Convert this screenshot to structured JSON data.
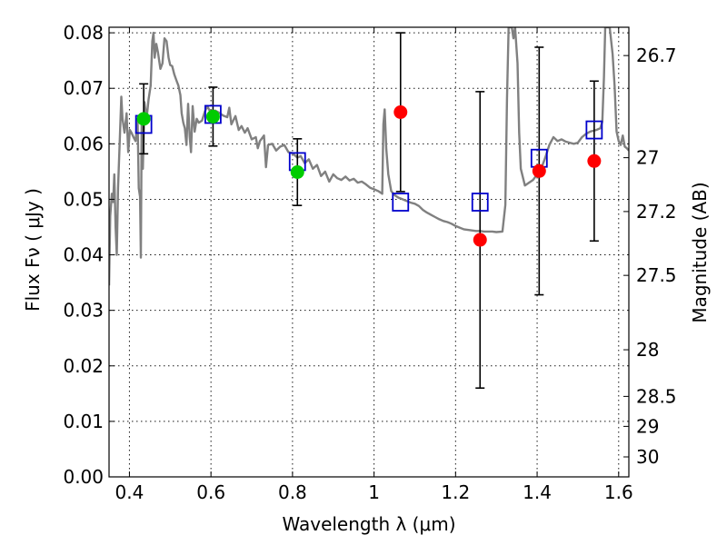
{
  "chart_data": {
    "type": "scatter",
    "xlabel": "Wavelength  λ (μm)",
    "ylabel": "Flux  Fν  ( μJy )",
    "ylabel_right": "Magnitude (AB)",
    "xlim": [
      0.35,
      1.625
    ],
    "ylim": [
      0.0,
      0.081
    ],
    "grid": true,
    "x_ticks": [
      0.4,
      0.6,
      0.8,
      1.0,
      1.2,
      1.4,
      1.6
    ],
    "x_tick_labels": [
      "0.4",
      "0.6",
      "0.8",
      "1",
      "1.2",
      "1.4",
      "1.6"
    ],
    "y_ticks": [
      0.0,
      0.01,
      0.02,
      0.03,
      0.04,
      0.05,
      0.06,
      0.07,
      0.08
    ],
    "y_tick_labels": [
      "0.00",
      "0.01",
      "0.02",
      "0.03",
      "0.04",
      "0.05",
      "0.06",
      "0.07",
      "0.08"
    ],
    "mag_ticks": [
      {
        "label": "26.7",
        "flux": 0.0759
      },
      {
        "label": "27",
        "flux": 0.0575
      },
      {
        "label": "27.2",
        "flux": 0.0478
      },
      {
        "label": "27.5",
        "flux": 0.0363
      },
      {
        "label": "28",
        "flux": 0.0229
      },
      {
        "label": "28.5",
        "flux": 0.0145
      },
      {
        "label": "29",
        "flux": 0.0091
      },
      {
        "label": "30",
        "flux": 0.0036
      }
    ],
    "sed_model": {
      "color": "#808080",
      "points": [
        [
          0.35,
          0.0345
        ],
        [
          0.353,
          0.047
        ],
        [
          0.357,
          0.051
        ],
        [
          0.36,
          0.0495
        ],
        [
          0.363,
          0.0545
        ],
        [
          0.366,
          0.045
        ],
        [
          0.369,
          0.04
        ],
        [
          0.372,
          0.052
        ],
        [
          0.376,
          0.0602
        ],
        [
          0.38,
          0.0685
        ],
        [
          0.383,
          0.0645
        ],
        [
          0.388,
          0.062
        ],
        [
          0.393,
          0.0655
        ],
        [
          0.397,
          0.0585
        ],
        [
          0.401,
          0.0625
        ],
        [
          0.405,
          0.062
        ],
        [
          0.41,
          0.0612
        ],
        [
          0.415,
          0.0605
        ],
        [
          0.42,
          0.0645
        ],
        [
          0.423,
          0.052
        ],
        [
          0.426,
          0.0505
        ],
        [
          0.428,
          0.0395
        ],
        [
          0.43,
          0.0635
        ],
        [
          0.433,
          0.0555
        ],
        [
          0.437,
          0.0675
        ],
        [
          0.442,
          0.0645
        ],
        [
          0.447,
          0.068
        ],
        [
          0.452,
          0.0705
        ],
        [
          0.456,
          0.0785
        ],
        [
          0.459,
          0.08
        ],
        [
          0.462,
          0.0755
        ],
        [
          0.466,
          0.078
        ],
        [
          0.47,
          0.0765
        ],
        [
          0.476,
          0.0735
        ],
        [
          0.481,
          0.0745
        ],
        [
          0.486,
          0.079
        ],
        [
          0.491,
          0.0785
        ],
        [
          0.496,
          0.0755
        ],
        [
          0.5,
          0.0742
        ],
        [
          0.505,
          0.074
        ],
        [
          0.51,
          0.0725
        ],
        [
          0.515,
          0.0715
        ],
        [
          0.52,
          0.0705
        ],
        [
          0.525,
          0.0688
        ],
        [
          0.528,
          0.0655
        ],
        [
          0.532,
          0.0638
        ],
        [
          0.536,
          0.0628
        ],
        [
          0.54,
          0.0598
        ],
        [
          0.544,
          0.0672
        ],
        [
          0.548,
          0.0612
        ],
        [
          0.551,
          0.0585
        ],
        [
          0.555,
          0.0668
        ],
        [
          0.56,
          0.0622
        ],
        [
          0.565,
          0.0645
        ],
        [
          0.57,
          0.0638
        ],
        [
          0.578,
          0.0642
        ],
        [
          0.585,
          0.0658
        ],
        [
          0.591,
          0.0668
        ],
        [
          0.6,
          0.0655
        ],
        [
          0.61,
          0.066
        ],
        [
          0.62,
          0.0656
        ],
        [
          0.63,
          0.0651
        ],
        [
          0.64,
          0.0648
        ],
        [
          0.645,
          0.0665
        ],
        [
          0.65,
          0.0635
        ],
        [
          0.66,
          0.065
        ],
        [
          0.668,
          0.0625
        ],
        [
          0.675,
          0.0632
        ],
        [
          0.683,
          0.062
        ],
        [
          0.69,
          0.0628
        ],
        [
          0.7,
          0.0608
        ],
        [
          0.71,
          0.0612
        ],
        [
          0.715,
          0.0592
        ],
        [
          0.72,
          0.0605
        ],
        [
          0.73,
          0.0615
        ],
        [
          0.735,
          0.0558
        ],
        [
          0.74,
          0.0598
        ],
        [
          0.75,
          0.06
        ],
        [
          0.76,
          0.0588
        ],
        [
          0.77,
          0.0595
        ],
        [
          0.78,
          0.0598
        ],
        [
          0.79,
          0.0585
        ],
        [
          0.8,
          0.0583
        ],
        [
          0.812,
          0.0575
        ],
        [
          0.82,
          0.0578
        ],
        [
          0.83,
          0.0565
        ],
        [
          0.84,
          0.0572
        ],
        [
          0.85,
          0.0555
        ],
        [
          0.86,
          0.0562
        ],
        [
          0.87,
          0.0542
        ],
        [
          0.88,
          0.055
        ],
        [
          0.89,
          0.0532
        ],
        [
          0.9,
          0.0545
        ],
        [
          0.91,
          0.0538
        ],
        [
          0.92,
          0.0535
        ],
        [
          0.93,
          0.0541
        ],
        [
          0.94,
          0.0534
        ],
        [
          0.95,
          0.0537
        ],
        [
          0.96,
          0.053
        ],
        [
          0.97,
          0.0532
        ],
        [
          0.98,
          0.0527
        ],
        [
          0.99,
          0.0521
        ],
        [
          1.0,
          0.0518
        ],
        [
          1.01,
          0.0515
        ],
        [
          1.02,
          0.051
        ],
        [
          1.023,
          0.0635
        ],
        [
          1.026,
          0.0662
        ],
        [
          1.03,
          0.059
        ],
        [
          1.035,
          0.0545
        ],
        [
          1.042,
          0.0515
        ],
        [
          1.05,
          0.0508
        ],
        [
          1.06,
          0.0503
        ],
        [
          1.07,
          0.05
        ],
        [
          1.08,
          0.0497
        ],
        [
          1.09,
          0.0494
        ],
        [
          1.1,
          0.0492
        ],
        [
          1.11,
          0.0488
        ],
        [
          1.12,
          0.0481
        ],
        [
          1.13,
          0.0476
        ],
        [
          1.14,
          0.0472
        ],
        [
          1.15,
          0.0468
        ],
        [
          1.16,
          0.0464
        ],
        [
          1.17,
          0.0461
        ],
        [
          1.18,
          0.0459
        ],
        [
          1.19,
          0.0456
        ],
        [
          1.2,
          0.0452
        ],
        [
          1.21,
          0.0449
        ],
        [
          1.22,
          0.0446
        ],
        [
          1.23,
          0.0445
        ],
        [
          1.24,
          0.0444
        ],
        [
          1.25,
          0.0443
        ],
        [
          1.26,
          0.0443
        ],
        [
          1.27,
          0.0442
        ],
        [
          1.28,
          0.0442
        ],
        [
          1.29,
          0.0442
        ],
        [
          1.3,
          0.0441
        ],
        [
          1.315,
          0.0442
        ],
        [
          1.322,
          0.049
        ],
        [
          1.326,
          0.068
        ],
        [
          1.33,
          0.081
        ],
        [
          1.338,
          0.081
        ],
        [
          1.342,
          0.079
        ],
        [
          1.346,
          0.081
        ],
        [
          1.352,
          0.0745
        ],
        [
          1.356,
          0.062
        ],
        [
          1.36,
          0.0555
        ],
        [
          1.37,
          0.0525
        ],
        [
          1.38,
          0.053
        ],
        [
          1.39,
          0.0535
        ],
        [
          1.4,
          0.0545
        ],
        [
          1.41,
          0.0555
        ],
        [
          1.42,
          0.0575
        ],
        [
          1.43,
          0.0598
        ],
        [
          1.44,
          0.0612
        ],
        [
          1.45,
          0.0605
        ],
        [
          1.46,
          0.0608
        ],
        [
          1.47,
          0.0604
        ],
        [
          1.48,
          0.0602
        ],
        [
          1.49,
          0.06
        ],
        [
          1.5,
          0.0602
        ],
        [
          1.51,
          0.0612
        ],
        [
          1.52,
          0.0618
        ],
        [
          1.53,
          0.0622
        ],
        [
          1.545,
          0.0625
        ],
        [
          1.555,
          0.0628
        ],
        [
          1.56,
          0.064
        ],
        [
          1.564,
          0.072
        ],
        [
          1.567,
          0.081
        ],
        [
          1.578,
          0.081
        ],
        [
          1.585,
          0.0762
        ],
        [
          1.59,
          0.0705
        ],
        [
          1.595,
          0.0622
        ],
        [
          1.6,
          0.0605
        ],
        [
          1.605,
          0.0598
        ],
        [
          1.61,
          0.0615
        ],
        [
          1.615,
          0.0595
        ],
        [
          1.62,
          0.0592
        ],
        [
          1.625,
          0.0588
        ]
      ]
    },
    "model_photometry": {
      "marker": "open-square",
      "color": "#0000cc",
      "points": [
        [
          0.435,
          0.0635
        ],
        [
          0.605,
          0.0653
        ],
        [
          0.812,
          0.0568
        ],
        [
          1.065,
          0.0495
        ],
        [
          1.26,
          0.0495
        ],
        [
          1.405,
          0.0574
        ],
        [
          1.54,
          0.0625
        ]
      ]
    },
    "detections": {
      "marker": "filled-circle",
      "color": "#00cc00",
      "points": [
        {
          "x": 0.435,
          "y": 0.0645,
          "err": 0.0063
        },
        {
          "x": 0.605,
          "y": 0.0649,
          "err": 0.0053
        },
        {
          "x": 0.812,
          "y": 0.0549,
          "err": 0.006
        }
      ]
    },
    "upper_limits": {
      "marker": "filled-circle",
      "color": "#ff0000",
      "points": [
        {
          "x": 1.065,
          "y": 0.0657,
          "err": 0.0143
        },
        {
          "x": 1.26,
          "y": 0.0427,
          "err": 0.0267
        },
        {
          "x": 1.405,
          "y": 0.0551,
          "err": 0.0223
        },
        {
          "x": 1.54,
          "y": 0.0569,
          "err": 0.0144
        }
      ]
    }
  }
}
